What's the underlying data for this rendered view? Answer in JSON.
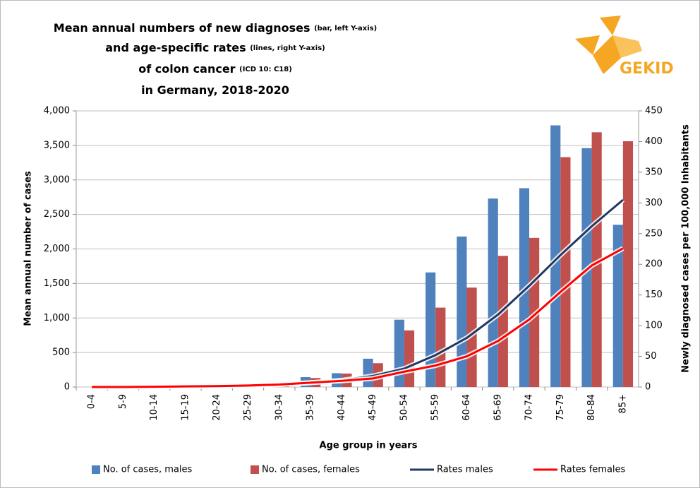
{
  "chart_data": {
    "type": "bar",
    "title": [
      {
        "text": "Mean annual numbers of new diagnoses",
        "note": "(bar, left Y-axis)"
      },
      {
        "text": "and age-specific rates",
        "note": "(lines, right Y-axis)"
      },
      {
        "text": "of colon cancer",
        "note": "(ICD 10: C18)"
      },
      {
        "text": "in Germany, 2018-2020"
      }
    ],
    "logo": "GEKID",
    "x_label": "Age group in years",
    "y_label": "Mean annual number of cases",
    "y2_label": "Newly diagnosed cases per 100,000 Inhabitants",
    "categories": [
      "0-4",
      "5-9",
      "10-14",
      "15-19",
      "20-24",
      "25-29",
      "30-34",
      "35-39",
      "40-44",
      "45-49",
      "50-54",
      "55-59",
      "60-64",
      "65-69",
      "70-74",
      "75-79",
      "80-84",
      "85+"
    ],
    "series": [
      {
        "name": "No. of cases, males",
        "type": "bar",
        "color": "#4f81bd",
        "values": [
          0,
          0,
          2,
          5,
          8,
          15,
          40,
          143,
          200,
          410,
          975,
          1660,
          2180,
          2730,
          2880,
          3790,
          3460,
          2350
        ]
      },
      {
        "name": "No. of cases, females",
        "type": "bar",
        "color": "#c0504d",
        "values": [
          0,
          0,
          2,
          5,
          10,
          20,
          45,
          130,
          195,
          345,
          820,
          1150,
          1440,
          1900,
          2160,
          3330,
          3690,
          3560
        ]
      },
      {
        "name": "Rates males",
        "type": "line",
        "axis": "y2",
        "color": "#1f3864",
        "values": [
          0,
          0,
          0.5,
          1,
          1.5,
          2,
          4,
          7,
          11,
          18,
          30,
          52,
          80,
          118,
          165,
          215,
          262,
          305
        ]
      },
      {
        "name": "Rates females",
        "type": "line",
        "axis": "y2",
        "color": "#ff0000",
        "values": [
          0,
          0,
          0.5,
          1,
          1.5,
          2.5,
          4,
          7,
          10,
          14,
          25,
          35,
          50,
          75,
          110,
          155,
          198,
          226
        ]
      }
    ],
    "ylim": [
      0,
      4000
    ],
    "yticks": [
      0,
      500,
      {
        "value": 1000,
        "label": "1,000"
      },
      {
        "value": 1500,
        "label": "1,500"
      },
      {
        "value": 2000,
        "label": "2,000"
      },
      {
        "value": 2500,
        "label": "2,500"
      },
      {
        "value": 3000,
        "label": "3,000"
      },
      {
        "value": 3500,
        "label": "3,500"
      },
      {
        "value": 4000,
        "label": "4,000"
      }
    ],
    "y2lim": [
      0,
      450
    ],
    "y2ticks": [
      0,
      50,
      100,
      150,
      200,
      250,
      300,
      350,
      400,
      450
    ],
    "grid": true,
    "legend": "bottom"
  }
}
